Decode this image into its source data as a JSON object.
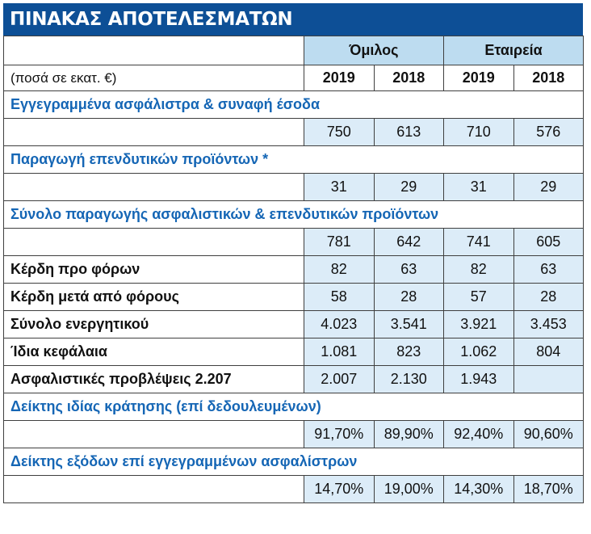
{
  "title": "ΠΙΝΑΚΑΣ ΑΠΟΤΕΛΕΣΜΑΤΩΝ",
  "header": {
    "group": "Όμιλος",
    "company": "Εταιρεία",
    "units": "(ποσά σε εκατ. €)",
    "years": [
      "2019",
      "2018",
      "2019",
      "2018"
    ]
  },
  "sections": [
    {
      "label": "Εγγεγραμμένα ασφάλιστρα & συναφή έσοδα",
      "values": [
        "750",
        "613",
        "710",
        "576"
      ]
    },
    {
      "label": "Παραγωγή επενδυτικών προϊόντων *",
      "values": [
        "31",
        "29",
        "31",
        "29"
      ]
    },
    {
      "label": "Σύνολο παραγωγής  ασφαλιστικών & επενδυτικών προϊόντων",
      "values": [
        "781",
        "642",
        "741",
        "605"
      ]
    }
  ],
  "rows": [
    {
      "label": "Κέρδη προ φόρων",
      "values": [
        "82",
        "63",
        "82",
        "63"
      ]
    },
    {
      "label": "Κέρδη μετά από φόρους",
      "values": [
        "58",
        "28",
        "57",
        "28"
      ]
    },
    {
      "label": "Σύνολο ενεργητικού",
      "values": [
        "4.023",
        "3.541",
        "3.921",
        "3.453"
      ]
    },
    {
      "label": "Ίδια κεφάλαια",
      "values": [
        "1.081",
        "823",
        "1.062",
        "804"
      ]
    },
    {
      "label": "Ασφαλιστικές προβλέψεις 2.207",
      "values": [
        "2.007",
        "2.130",
        "1.943",
        ""
      ]
    }
  ],
  "ratios": [
    {
      "label": "Δείκτης ιδίας κράτησης (επί δεδουλευμένων)",
      "values": [
        "91,70%",
        "89,90%",
        "92,40%",
        "90,60%"
      ]
    },
    {
      "label": "Δείκτης εξόδων επί εγγεγραμμένων ασφαλίστρων",
      "values": [
        "14,70%",
        "19,00%",
        "14,30%",
        "18,70%"
      ]
    }
  ]
}
